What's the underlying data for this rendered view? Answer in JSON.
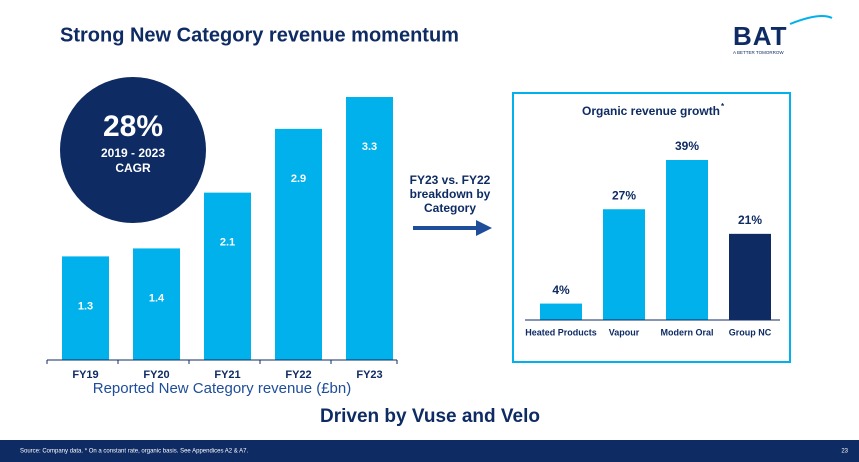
{
  "title": "Strong New Category revenue momentum",
  "logo": {
    "name": "BAT",
    "tagline": "A BETTER TOMORROW"
  },
  "cagr": {
    "value": "28%",
    "period": "2019 - 2023",
    "label": "CAGR"
  },
  "arrow_label": [
    "FY23 vs. FY22",
    "breakdown by",
    "Category"
  ],
  "subheading": "Driven by Vuse and Velo",
  "footnote": "Source: Company data. * On a constant rate, organic basis. See Appendices A2 & A7.",
  "page_number": "23",
  "chart_data": [
    {
      "type": "bar",
      "x_label": "Reported New Category revenue (£bn)",
      "categories": [
        "FY19",
        "FY20",
        "FY21",
        "FY22",
        "FY23"
      ],
      "values": [
        1.3,
        1.4,
        2.1,
        2.9,
        3.3
      ],
      "color": "#00b1eb",
      "label_position": "inside"
    },
    {
      "type": "bar",
      "title": "Organic revenue growth",
      "title_note": "*",
      "categories": [
        "Heated Products",
        "Vapour",
        "Modern Oral",
        "Group NC"
      ],
      "values": [
        4,
        27,
        39,
        21
      ],
      "value_labels": [
        "4%",
        "27%",
        "39%",
        "21%"
      ],
      "colors": [
        "#00b1eb",
        "#00b1eb",
        "#00b1eb",
        "#0e2b63"
      ],
      "label_position": "above"
    }
  ]
}
